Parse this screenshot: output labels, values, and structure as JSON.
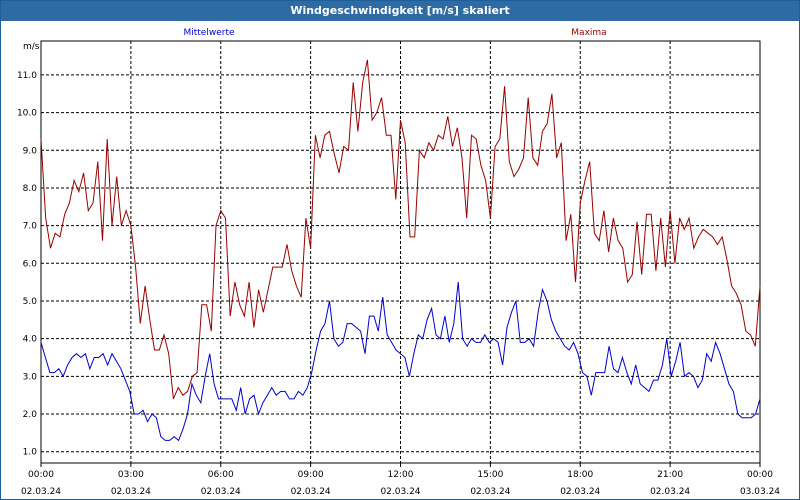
{
  "window": {
    "title": "Windgeschwindigkeit [m/s] skaliert"
  },
  "chart_data": {
    "type": "line",
    "ylabel": "m/s",
    "ylim": [
      0.7,
      11.9
    ],
    "yticks": [
      1.0,
      2.0,
      3.0,
      4.0,
      5.0,
      6.0,
      7.0,
      8.0,
      9.0,
      10.0,
      11.0
    ],
    "ytick_labels": [
      "1.0",
      "2.0",
      "3.0",
      "4.0",
      "5.0",
      "6.0",
      "7.0",
      "8.0",
      "9.0",
      "10.0",
      "11.0"
    ],
    "xlim": [
      0,
      24
    ],
    "xticks": [
      0,
      3,
      6,
      9,
      12,
      15,
      18,
      21,
      24
    ],
    "xtick_labels": [
      "00:00",
      "03:00",
      "06:00",
      "09:00",
      "12:00",
      "15:00",
      "18:00",
      "21:00",
      "00:00"
    ],
    "xtick_dates": [
      "02.03.24",
      "02.03.24",
      "02.03.24",
      "02.03.24",
      "02.03.24",
      "02.03.24",
      "02.03.24",
      "02.03.24",
      "03.03.24"
    ],
    "grid": true,
    "colors": {
      "mittelwerte": "#0000cc",
      "maxima": "#990000"
    },
    "series": [
      {
        "name": "Mittelwerte",
        "values": [
          3.9,
          3.5,
          3.1,
          3.1,
          3.2,
          3.0,
          3.3,
          3.5,
          3.6,
          3.5,
          3.6,
          3.2,
          3.5,
          3.5,
          3.6,
          3.3,
          3.6,
          3.4,
          3.2,
          2.9,
          2.6,
          2.0,
          2.0,
          2.1,
          1.8,
          2.0,
          1.9,
          1.4,
          1.3,
          1.3,
          1.4,
          1.3,
          1.6,
          2.0,
          2.8,
          2.5,
          2.3,
          3.0,
          3.6,
          2.8,
          2.4,
          2.4,
          2.4,
          2.4,
          2.1,
          2.7,
          2.0,
          2.4,
          2.5,
          2.0,
          2.3,
          2.5,
          2.7,
          2.5,
          2.6,
          2.6,
          2.4,
          2.4,
          2.6,
          2.5,
          2.7,
          3.1,
          3.7,
          4.2,
          4.4,
          5.0,
          4.0,
          3.8,
          3.9,
          4.4,
          4.4,
          4.3,
          4.2,
          3.6,
          4.6,
          4.6,
          4.2,
          5.1,
          4.1,
          3.9,
          3.7,
          3.6,
          3.5,
          3.0,
          3.6,
          4.1,
          4.0,
          4.5,
          4.8,
          4.1,
          4.0,
          4.6,
          3.9,
          4.4,
          5.5,
          4.0,
          3.8,
          4.0,
          3.9,
          3.9,
          4.1,
          3.9,
          4.0,
          3.9,
          3.3,
          4.3,
          4.7,
          5.0,
          3.9,
          3.9,
          4.0,
          3.8,
          4.7,
          5.3,
          5.0,
          4.5,
          4.2,
          4.0,
          3.8,
          3.7,
          3.9,
          3.6,
          3.1,
          3.0,
          2.5,
          3.1,
          3.1,
          3.1,
          3.8,
          3.2,
          3.1,
          3.5,
          3.1,
          2.8,
          3.3,
          2.8,
          2.7,
          2.6,
          2.9,
          2.9,
          3.3,
          4.0,
          3.0,
          3.4,
          3.9,
          3.0,
          3.1,
          3.0,
          2.7,
          2.9,
          3.6,
          3.4,
          3.9,
          3.6,
          3.2,
          2.8,
          2.6,
          2.0,
          1.9,
          1.9,
          1.9,
          2.0,
          2.4
        ]
      },
      {
        "name": "Maxima",
        "values": [
          9.3,
          7.2,
          6.4,
          6.8,
          6.7,
          7.3,
          7.6,
          8.2,
          7.9,
          8.4,
          7.4,
          7.6,
          8.7,
          6.6,
          9.3,
          7.0,
          8.3,
          7.0,
          7.4,
          7.0,
          5.9,
          4.4,
          5.4,
          4.5,
          3.7,
          3.7,
          4.1,
          3.6,
          2.4,
          2.7,
          2.5,
          2.6,
          3.0,
          3.1,
          4.9,
          4.9,
          4.2,
          7.0,
          7.4,
          7.2,
          4.6,
          5.5,
          4.9,
          4.6,
          5.5,
          4.3,
          5.3,
          4.7,
          5.3,
          5.9,
          5.9,
          5.9,
          6.5,
          5.8,
          5.4,
          5.1,
          7.2,
          6.4,
          9.4,
          8.8,
          9.4,
          9.5,
          8.9,
          8.4,
          9.1,
          9.0,
          10.8,
          9.5,
          10.8,
          11.4,
          9.8,
          10.0,
          10.4,
          9.4,
          9.4,
          7.7,
          9.8,
          9.2,
          6.7,
          6.7,
          9.0,
          8.8,
          9.2,
          9.0,
          9.4,
          9.3,
          9.9,
          9.1,
          9.6,
          8.8,
          7.2,
          9.4,
          9.3,
          8.6,
          8.2,
          7.2,
          9.1,
          9.3,
          10.7,
          8.7,
          8.3,
          8.5,
          8.8,
          10.4,
          8.8,
          8.6,
          9.5,
          9.7,
          10.5,
          8.8,
          9.2,
          6.6,
          7.3,
          5.5,
          7.6,
          8.2,
          8.7,
          6.8,
          6.6,
          7.4,
          6.3,
          7.2,
          6.6,
          6.4,
          5.5,
          5.7,
          7.1,
          5.7,
          7.3,
          7.3,
          5.8,
          7.2,
          5.9,
          7.4,
          6.0,
          7.2,
          6.9,
          7.2,
          6.4,
          6.7,
          6.9,
          6.8,
          6.7,
          6.5,
          6.7,
          6.1,
          5.4,
          5.2,
          4.9,
          4.2,
          4.1,
          3.8,
          5.4
        ]
      }
    ]
  }
}
